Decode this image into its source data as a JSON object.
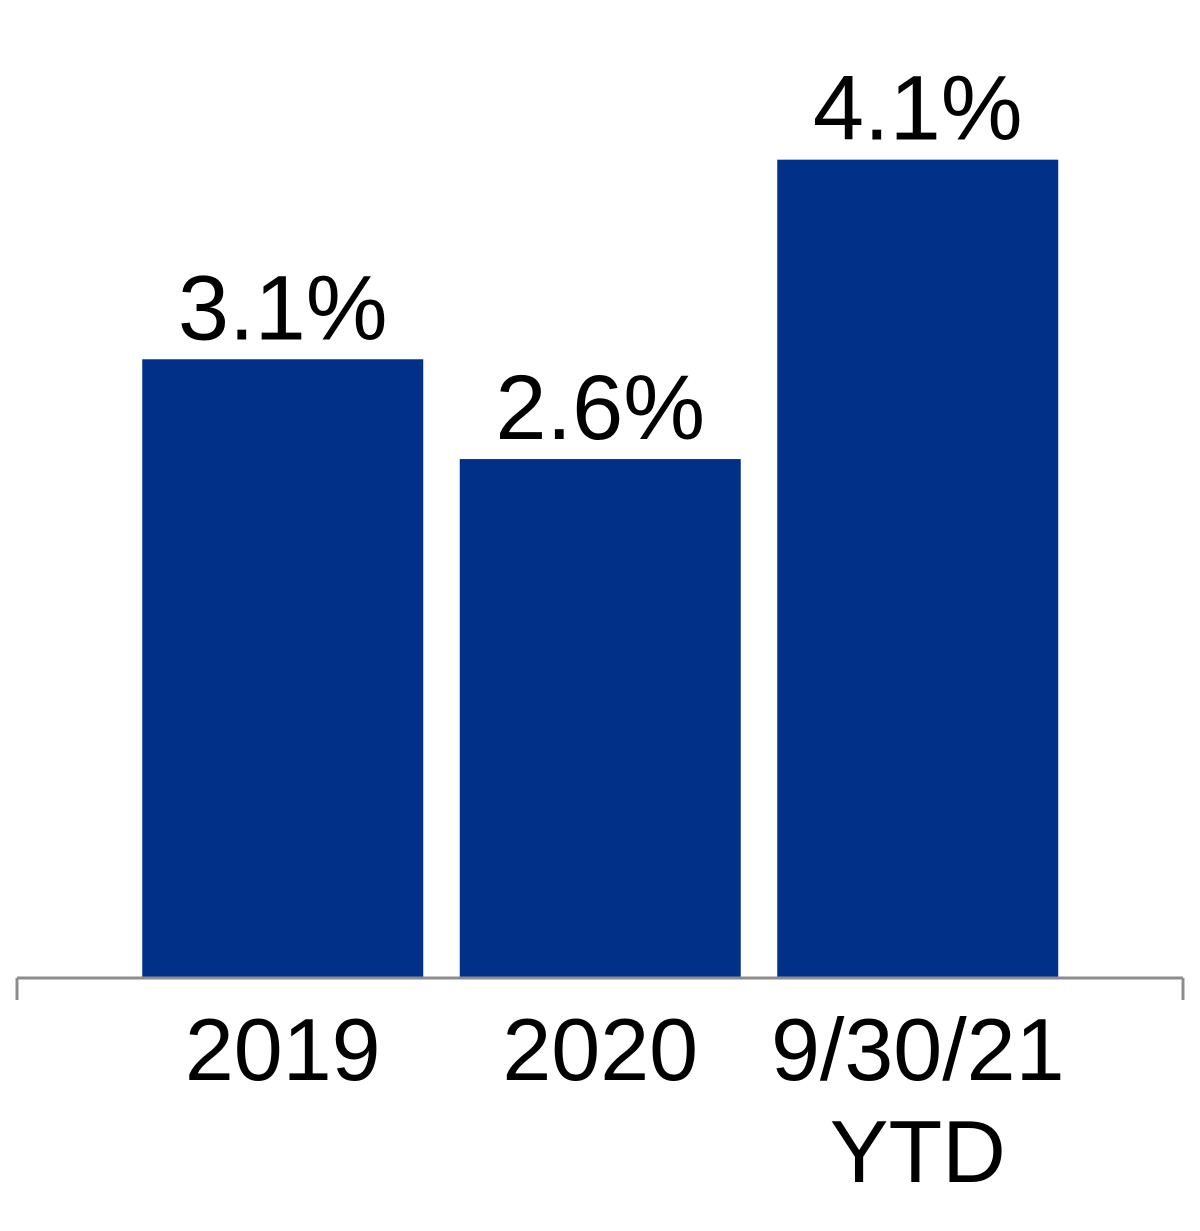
{
  "chart_data": {
    "type": "bar",
    "categories": [
      [
        "2019"
      ],
      [
        "2020"
      ],
      [
        "9/30/21",
        "YTD"
      ]
    ],
    "values": [
      3.1,
      2.6,
      4.1
    ],
    "data_labels": [
      "3.1%",
      "2.6%",
      "4.1%"
    ],
    "title": "",
    "xlabel": "",
    "ylabel": "",
    "ylim": [
      0,
      4.9
    ],
    "grid": false,
    "legend": "none",
    "colors": {
      "bar": "#003087",
      "axis": "#8c8c8c",
      "text": "#000000"
    }
  }
}
